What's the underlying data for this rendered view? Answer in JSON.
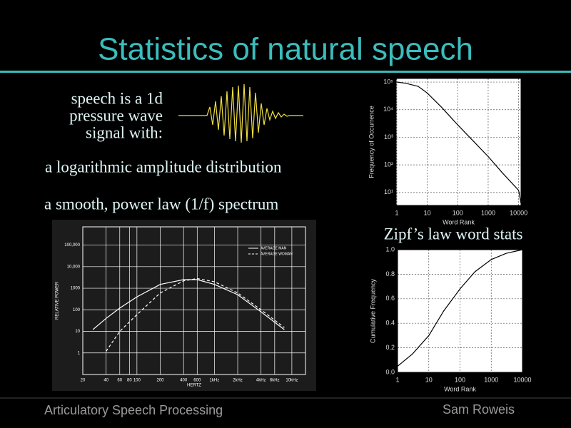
{
  "title": "Statistics of natural speech",
  "intro": [
    "speech is a 1d",
    "pressure wave",
    "signal with:"
  ],
  "bullets": [
    "a logarithmic amplitude distribution",
    "a smooth, power law (1/f) spectrum"
  ],
  "zipf_caption": "Zipf’s law word stats",
  "footer": {
    "left": "Articulatory Speech Processing",
    "right": "Sam Roweis"
  },
  "chart_data": [
    {
      "type": "line",
      "xlabel": "HERTZ",
      "ylabel": "RELATIVE POWER",
      "log_x": true,
      "log_y": true,
      "grid": true,
      "background": "#1c1c1c",
      "color": "#ffffff",
      "legend": "upper right",
      "xlim": [
        20,
        15000
      ],
      "ylim": [
        0.1,
        700000
      ],
      "xticks": [
        20,
        40,
        60,
        80,
        100,
        200,
        400,
        600,
        {
          "value": 1000,
          "label": "1kHz"
        },
        {
          "value": 2000,
          "label": "2kHz"
        },
        {
          "value": 4000,
          "label": "4kHz"
        },
        {
          "value": 6000,
          "label": "6kHz"
        },
        {
          "value": 10000,
          "label": "10kHz"
        }
      ],
      "yticks": [
        1,
        10,
        100,
        1000,
        {
          "value": 10000,
          "label": "10,000"
        },
        {
          "value": 100000,
          "label": "100,000"
        }
      ],
      "series": [
        {
          "name": "AVERAGE MAN",
          "color": "#ffffff",
          "dash": "solid",
          "x": [
            27,
            40,
            60,
            100,
            200,
            400,
            600,
            1000,
            2000,
            4000,
            8000
          ],
          "values": [
            12,
            40,
            120,
            400,
            1500,
            2500,
            2500,
            1500,
            500,
            80,
            12
          ]
        },
        {
          "name": "AVERAGE WOMAN",
          "color": "#ffffff",
          "dash": "dashed",
          "x": [
            40,
            60,
            100,
            200,
            400,
            600,
            1000,
            2000,
            4000,
            8000
          ],
          "values": [
            1.2,
            10,
            60,
            600,
            2200,
            2800,
            2000,
            600,
            100,
            15
          ]
        }
      ]
    },
    {
      "type": "line",
      "xlabel": "Word Rank",
      "ylabel": "Frequency of Occurrence",
      "log_x": true,
      "log_y": true,
      "grid": true,
      "background": "#ffffff",
      "color": "#000000",
      "xlim": [
        0.95,
        12000
      ],
      "ylim": [
        3.4,
        135000
      ],
      "xticks": [
        1,
        10,
        100,
        1000,
        10000
      ],
      "yticks": [
        {
          "value": 10,
          "label": "10¹"
        },
        {
          "value": 100,
          "label": "10²"
        },
        {
          "value": 1000,
          "label": "10³"
        },
        {
          "value": 10000,
          "label": "10⁴"
        },
        {
          "value": 100000,
          "label": "10⁵"
        }
      ],
      "series": [
        {
          "color": "#000000",
          "x": [
            1,
            2,
            5,
            10,
            30,
            100,
            300,
            1000,
            3000,
            10000,
            12000
          ],
          "values": [
            100000,
            90000,
            70000,
            40000,
            12000,
            2800,
            800,
            200,
            50,
            12,
            4
          ]
        }
      ]
    },
    {
      "type": "line",
      "xlabel": "Word Rank",
      "ylabel": "Cumulative Frequency",
      "log_x": true,
      "log_y": false,
      "grid": true,
      "background": "#ffffff",
      "color": "#000000",
      "xlim": [
        1,
        10000
      ],
      "ylim": [
        0,
        1
      ],
      "xticks": [
        1,
        10,
        100,
        1000,
        10000
      ],
      "yticks": [
        {
          "value": 0,
          "label": "0.0"
        },
        0.2,
        0.4,
        0.6,
        0.8,
        {
          "value": 1,
          "label": "1.0"
        }
      ],
      "series": [
        {
          "color": "#000000",
          "x": [
            1,
            3,
            10,
            30,
            100,
            300,
            1000,
            3000,
            10000
          ],
          "values": [
            0.05,
            0.15,
            0.3,
            0.5,
            0.68,
            0.82,
            0.92,
            0.97,
            1.0
          ]
        }
      ]
    }
  ]
}
